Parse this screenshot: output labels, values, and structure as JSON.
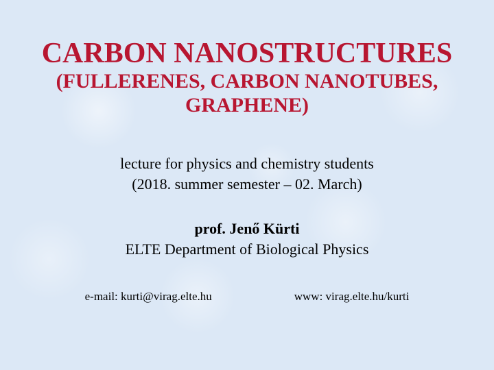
{
  "colors": {
    "title": "#b81631",
    "body": "#000000",
    "background": "#dce8f6"
  },
  "typography": {
    "family": "Times New Roman",
    "title_main_pt": 42,
    "title_sub_pt": 30,
    "body_pt": 22,
    "contact_pt": 17
  },
  "title": {
    "main": "CARBON NANOSTRUCTURES",
    "sub1": "(FULLERENES, CARBON NANOTUBES,",
    "sub2": "GRAPHENE)"
  },
  "info": {
    "line1": "lecture for physics and chemistry students",
    "line2": "(2018. summer semester – 02. March)"
  },
  "author": {
    "name": "prof. Jenő Kürti",
    "dept": "ELTE Department of Biological Physics"
  },
  "contact": {
    "email": "e-mail: kurti@virag.elte.hu",
    "www": "www: virag.elte.hu/kurti"
  }
}
